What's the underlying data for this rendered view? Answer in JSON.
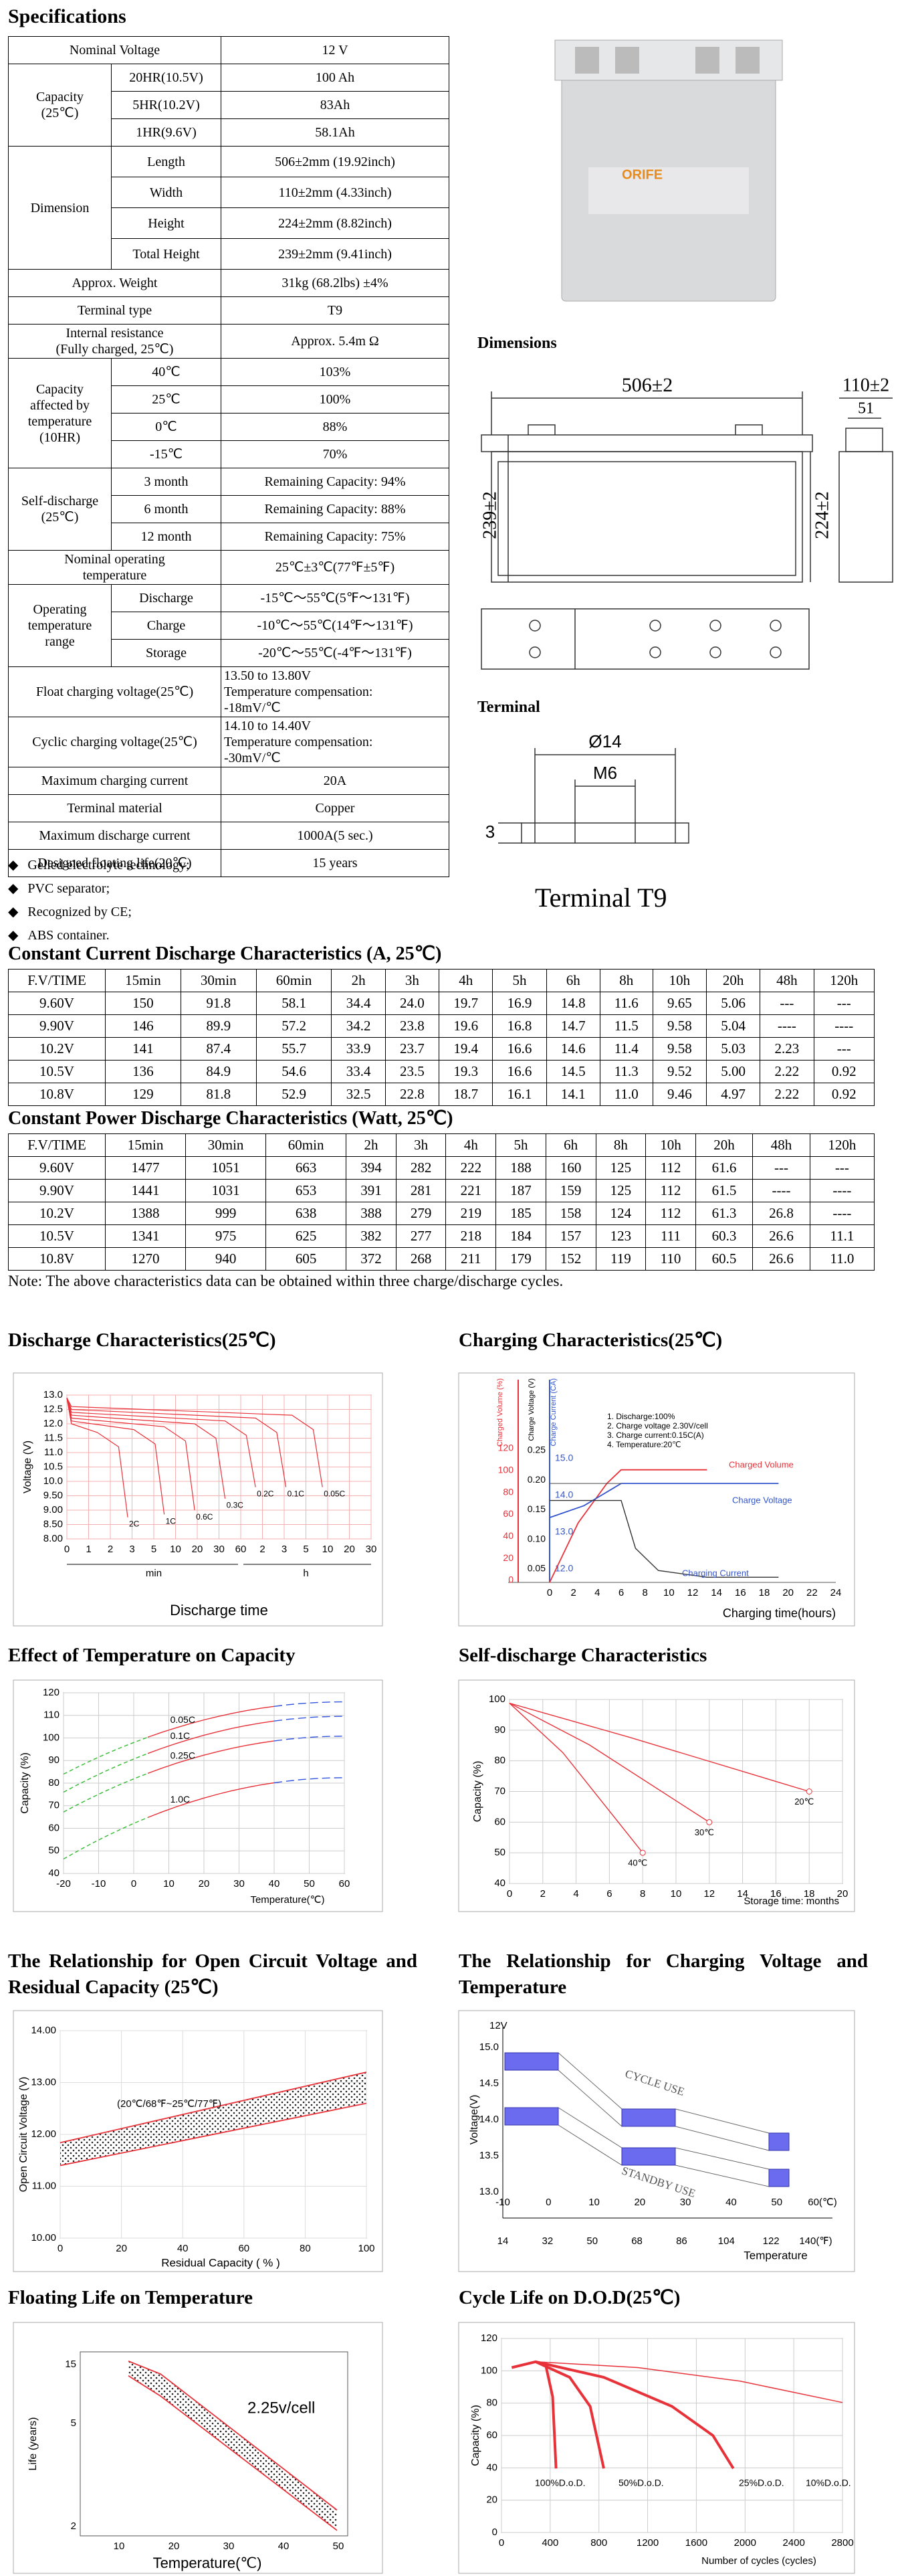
{
  "specs": {
    "title": "Specifications",
    "rows": [
      {
        "label": [
          "Nominal Voltage"
        ],
        "value": [
          "12 V"
        ]
      },
      {
        "label": [
          "Capacity",
          "(25℃)"
        ],
        "items": [
          [
            "20HR(10.5V)",
            "100 Ah"
          ],
          [
            "5HR(10.2V)",
            "83Ah"
          ],
          [
            "1HR(9.6V)",
            "58.1Ah"
          ]
        ]
      },
      {
        "label": [
          "Dimension"
        ],
        "items": [
          [
            "Length",
            "506±2mm (19.92inch)"
          ],
          [
            "Width",
            "110±2mm (4.33inch)"
          ],
          [
            "Height",
            "224±2mm (8.82inch)"
          ],
          [
            "Total Height",
            "239±2mm (9.41inch)"
          ]
        ]
      },
      {
        "label": [
          "Approx. Weight"
        ],
        "value": [
          "31kg (68.2lbs)  ±4%"
        ]
      },
      {
        "label": [
          "Terminal type"
        ],
        "value": [
          "T9"
        ]
      },
      {
        "label": [
          "Internal resistance",
          "(Fully charged, 25℃)"
        ],
        "value": [
          "Approx. 5.4m Ω"
        ]
      },
      {
        "label": [
          "Capacity",
          "affected by",
          "temperature",
          "(10HR)"
        ],
        "items": [
          [
            "40℃",
            "103%"
          ],
          [
            "25℃",
            "100%"
          ],
          [
            "0℃",
            "88%"
          ],
          [
            "-15℃",
            "70%"
          ]
        ]
      },
      {
        "label": [
          "Self-discharge",
          "(25℃)"
        ],
        "items": [
          [
            "3 month",
            "Remaining Capacity: 94%"
          ],
          [
            "6 month",
            "Remaining Capacity: 88%"
          ],
          [
            "12 month",
            "Remaining Capacity: 75%"
          ]
        ]
      },
      {
        "label": [
          "Nominal operating",
          "temperature"
        ],
        "value": [
          "25℃±3℃(77℉±5℉)"
        ]
      },
      {
        "label": [
          "Operating",
          "temperature",
          "range"
        ],
        "items": [
          [
            "Discharge",
            "-15℃～55℃(5℉～131℉)"
          ],
          [
            "Charge",
            "-10℃～55℃(14℉～131℉)"
          ],
          [
            "Storage",
            "-20℃～55℃(-4℉～131℉)"
          ]
        ]
      },
      {
        "label": [
          "Float charging voltage(25℃)"
        ],
        "value": [
          "13.50 to 13.80V",
          "Temperature compensation:",
          "-18mV/℃"
        ]
      },
      {
        "label": [
          "Cyclic charging voltage(25℃)"
        ],
        "value": [
          "14.10 to 14.40V",
          "Temperature compensation:",
          "-30mV/℃"
        ]
      },
      {
        "label": [
          "Maximum charging current"
        ],
        "value": [
          "20A"
        ]
      },
      {
        "label": [
          "Terminal material"
        ],
        "value": [
          "Copper"
        ]
      },
      {
        "label": [
          "Maximum discharge current"
        ],
        "value": [
          "1000A(5 sec.)"
        ]
      },
      {
        "label": [
          "Designed floating life(20℃)"
        ],
        "value": [
          "15 years"
        ]
      }
    ],
    "features": [
      "Gelled electrolyte technology;",
      "PVC separator;",
      "Recognized by CE;",
      "ABS container."
    ]
  },
  "product": {
    "logo": "ORIFE"
  },
  "dimensions": {
    "title": "Dimensions",
    "labels": [
      "506±2",
      "110±2",
      "51",
      "239±2",
      "224±2"
    ]
  },
  "terminal": {
    "title": "Terminal",
    "labels": [
      "Ø14",
      "M6",
      "3"
    ],
    "caption": "Terminal T9"
  },
  "current": {
    "title": "Constant Current Discharge Characteristics (A, 25℃)",
    "header": [
      "F.V/TIME",
      "15min",
      "30min",
      "60min",
      "2h",
      "3h",
      "4h",
      "5h",
      "6h",
      "8h",
      "10h",
      "20h",
      "48h",
      "120h"
    ],
    "rows": [
      [
        "9.60V",
        "150",
        "91.8",
        "58.1",
        "34.4",
        "24.0",
        "19.7",
        "16.9",
        "14.8",
        "11.6",
        "9.65",
        "5.06",
        "---",
        "---"
      ],
      [
        "9.90V",
        "146",
        "89.9",
        "57.2",
        "34.2",
        "23.8",
        "19.6",
        "16.8",
        "14.7",
        "11.5",
        "9.58",
        "5.04",
        "----",
        "----"
      ],
      [
        "10.2V",
        "141",
        "87.4",
        "55.7",
        "33.9",
        "23.7",
        "19.4",
        "16.6",
        "14.6",
        "11.4",
        "9.58",
        "5.03",
        "2.23",
        "---"
      ],
      [
        "10.5V",
        "136",
        "84.9",
        "54.6",
        "33.4",
        "23.5",
        "19.3",
        "16.6",
        "14.5",
        "11.3",
        "9.52",
        "5.00",
        "2.22",
        "0.92"
      ],
      [
        "10.8V",
        "129",
        "81.8",
        "52.9",
        "32.5",
        "22.8",
        "18.7",
        "16.1",
        "14.1",
        "11.0",
        "9.46",
        "4.97",
        "2.22",
        "0.92"
      ]
    ]
  },
  "power": {
    "title": "Constant Power Discharge Characteristics (Watt, 25℃)",
    "header": [
      "F.V/TIME",
      "15min",
      "30min",
      "60min",
      "2h",
      "3h",
      "4h",
      "5h",
      "6h",
      "8h",
      "10h",
      "20h",
      "48h",
      "120h"
    ],
    "rows": [
      [
        "9.60V",
        "1477",
        "1051",
        "663",
        "394",
        "282",
        "222",
        "188",
        "160",
        "125",
        "112",
        "61.6",
        "---",
        "---"
      ],
      [
        "9.90V",
        "1441",
        "1031",
        "653",
        "391",
        "281",
        "221",
        "187",
        "159",
        "125",
        "112",
        "61.5",
        "----",
        "----"
      ],
      [
        "10.2V",
        "1388",
        "999",
        "638",
        "388",
        "279",
        "219",
        "185",
        "158",
        "124",
        "112",
        "61.3",
        "26.8",
        "----"
      ],
      [
        "10.5V",
        "1341",
        "975",
        "625",
        "382",
        "277",
        "218",
        "184",
        "157",
        "123",
        "111",
        "60.3",
        "26.6",
        "11.1"
      ],
      [
        "10.8V",
        "1270",
        "940",
        "605",
        "372",
        "268",
        "211",
        "179",
        "152",
        "119",
        "110",
        "60.5",
        "26.6",
        "11.0"
      ]
    ]
  },
  "note": "Note: The above characteristics data can be obtained within three charge/discharge cycles.",
  "charts": [
    {
      "title": "Discharge Characteristics(25℃)",
      "y_label": "Voltage (V)",
      "y_ticks": [
        "13.0",
        "12.5",
        "12.0",
        "11.5",
        "11.0",
        "10.5",
        "10.0",
        "9.50",
        "9.00",
        "8.50",
        "8.00"
      ],
      "x_ticks": [
        "0",
        "1",
        "2",
        "3",
        "5",
        "10",
        "20",
        "30",
        "60",
        "2",
        "3",
        "5",
        "10",
        "20",
        "30"
      ],
      "x_groups": [
        "min",
        "h"
      ],
      "x_label": "Discharge time",
      "curve_labels": [
        "2C",
        "1C",
        "0.6C",
        "0.3C",
        "0.2C",
        "0.1C",
        "0.05C"
      ]
    },
    {
      "title": "Charging Characteristics(25℃)",
      "axis_titles": [
        "Charged Volume (%)",
        "Charge Voltage (V)",
        "Charge Current (CA)"
      ],
      "volume_ticks": [
        "120",
        "100",
        "80",
        "60",
        "40",
        "20",
        "0"
      ],
      "current_ticks": [
        "0.25",
        "0.20",
        "0.15",
        "0.10",
        "0.05"
      ],
      "voltage_ticks": [
        "15.0",
        "14.0",
        "13.0",
        "12.0"
      ],
      "x_ticks": [
        "0",
        "2",
        "4",
        "6",
        "8",
        "10",
        "12",
        "14",
        "16",
        "18",
        "20",
        "22",
        "24"
      ],
      "x_label": "Charging time(hours)",
      "notes": [
        "1. Discharge:100%",
        "2. Charge voltage 2.30V/cell",
        "3. Charge current:0.15C(A)",
        "4. Temperature:20℃"
      ],
      "curve_labels": [
        "Charged Volume",
        "Charge Voltage",
        "Charging Current"
      ]
    },
    {
      "title": "Effect of Temperature on Capacity",
      "y_label": "Capacity (%)",
      "y_ticks": [
        "120",
        "110",
        "100",
        "90",
        "80",
        "70",
        "60",
        "50",
        "40"
      ],
      "x_ticks": [
        "-20",
        "-10",
        "0",
        "10",
        "20",
        "30",
        "40",
        "50",
        "60"
      ],
      "x_label": "Temperature(℃)",
      "curve_labels": [
        "0.05C",
        "0.1C",
        "0.25C",
        "1.0C"
      ]
    },
    {
      "title": "Self-discharge Characteristics",
      "y_label": "Capacity (%)",
      "y_ticks": [
        "100",
        "90",
        "80",
        "70",
        "60",
        "50",
        "40"
      ],
      "x_ticks": [
        "0",
        "2",
        "4",
        "6",
        "8",
        "10",
        "12",
        "14",
        "16",
        "18",
        "20"
      ],
      "x_label": "Storage time: months",
      "curve_labels": [
        "20℃",
        "30℃",
        "40℃"
      ]
    },
    {
      "title": "The Relationship for Open Circuit Voltage and Residual Capacity (25℃)",
      "y_label": "Open Circuit Voltage (V)",
      "y_ticks": [
        "14.00",
        "13.00",
        "12.00",
        "11.00",
        "10.00"
      ],
      "x_ticks": [
        "0",
        "20",
        "40",
        "60",
        "80",
        "100"
      ],
      "x_label": "Residual Capacity ( % )",
      "annotation": "(20℃/68℉~25℃/77℉)"
    },
    {
      "title": "The Relationship for Charging Voltage and Temperature",
      "y_label": "Voltage(V)",
      "unit": "12V",
      "y_ticks": [
        "15.0",
        "14.5",
        "14.0",
        "13.5",
        "13.0"
      ],
      "x_ticks": [
        "-10",
        "0",
        "10",
        "20",
        "30",
        "40",
        "50",
        "60(℃)"
      ],
      "x_ticks_f": [
        "14",
        "32",
        "50",
        "68",
        "86",
        "104",
        "122",
        "140(℉)"
      ],
      "x_label": "Temperature",
      "curve_labels": [
        "CYCLE USE",
        "STANDBY USE"
      ]
    },
    {
      "title": "Floating Life on Temperature",
      "y_label": "Life (years)",
      "y_ticks": [
        "15",
        "5",
        "2"
      ],
      "x_ticks": [
        "10",
        "20",
        "30",
        "40",
        "50"
      ],
      "x_label": "Temperature(℃)",
      "annotation": "2.25v/cell"
    },
    {
      "title": "Cycle Life on D.O.D(25℃)",
      "y_label": "Capacity (%)",
      "y_ticks": [
        "120",
        "100",
        "80",
        "60",
        "40",
        "20",
        "0"
      ],
      "x_ticks": [
        "0",
        "400",
        "800",
        "1200",
        "1600",
        "2000",
        "2400",
        "2800"
      ],
      "x_label": "Number of cycles (cycles)",
      "curve_labels": [
        "100%D.o.D.",
        "50%D.o.D.",
        "25%D.o.D.",
        "10%D.o.D."
      ]
    }
  ]
}
